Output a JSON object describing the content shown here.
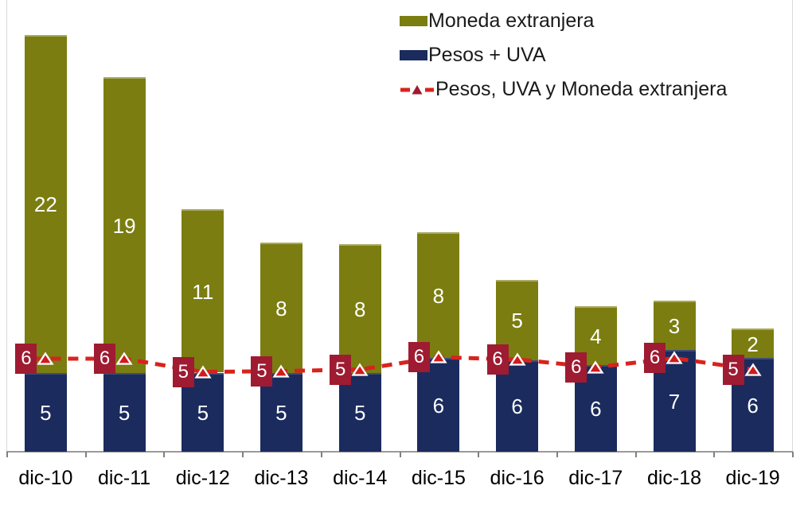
{
  "chart_data": {
    "type": "bar",
    "subtype": "stacked-bars-with-line-overlay",
    "title": "",
    "xlabel": "",
    "ylabel": "",
    "grid": false,
    "ylim": [
      0,
      28
    ],
    "legend_position": "top-right",
    "categories": [
      "dic-10",
      "dic-11",
      "dic-12",
      "dic-13",
      "dic-14",
      "dic-15",
      "dic-16",
      "dic-17",
      "dic-18",
      "dic-19"
    ],
    "series": [
      {
        "name": "Pesos + UVA",
        "color": "#1b2b5e",
        "stack_order": "bottom",
        "values": [
          5,
          5,
          5,
          5,
          5,
          6,
          6,
          6,
          7,
          6
        ]
      },
      {
        "name": "Moneda extranjera",
        "color": "#7b7d10",
        "stack_order": "top",
        "values": [
          22,
          19,
          11,
          8,
          8,
          8,
          5,
          4,
          3,
          2
        ]
      }
    ],
    "line_series": {
      "name": "Pesos, UVA y Moneda extranjera",
      "style": "dashed",
      "line_color": "#d8231c",
      "marker": "triangle-up",
      "marker_color": "#cf1b1e",
      "marker_outline": "#ffffff",
      "label_bg_color": "#9e1b32",
      "label_text_color": "#ffffff",
      "values": [
        6,
        6,
        5,
        5,
        5,
        6,
        6,
        6,
        6,
        5
      ]
    },
    "plot_estimates": {
      "comment": "unrounded plotted magnitudes estimated from pixels, units as labeled",
      "blue": [
        5.1,
        5.1,
        5.1,
        5.1,
        5.1,
        6.05,
        5.9,
        5.6,
        6.55,
        6.05
      ],
      "total": [
        26.9,
        24.15,
        15.65,
        13.5,
        13.4,
        14.15,
        11.1,
        9.4,
        9.75,
        7.95
      ],
      "line": [
        6.0,
        6.0,
        5.15,
        5.2,
        5.3,
        6.1,
        5.95,
        5.45,
        6.03,
        5.3
      ]
    },
    "axis": {
      "x_tick_labels": [
        "dic-10",
        "dic-11",
        "dic-12",
        "dic-13",
        "dic-14",
        "dic-15",
        "dic-16",
        "dic-17",
        "dic-18",
        "dic-19"
      ],
      "axis_line_color": "#9a9a9a",
      "tick_color": "#808080",
      "plot_border_color": "#d9d9d9"
    },
    "legend": {
      "entries": [
        {
          "label": "Moneda extranjera",
          "swatch": "olive-rect"
        },
        {
          "label": "Pesos + UVA",
          "swatch": "navy-rect"
        },
        {
          "label": "Pesos, UVA y Moneda extranjera",
          "swatch": "red-dashed-line-triangle"
        }
      ]
    }
  }
}
